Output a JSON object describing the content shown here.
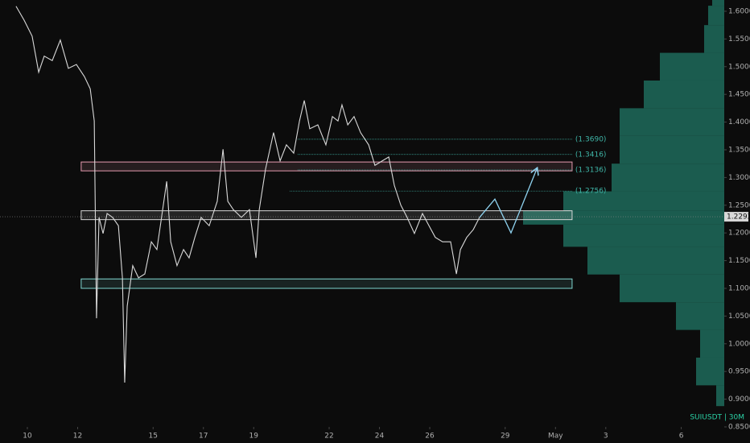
{
  "chart_data": {
    "type": "line",
    "symbol_label": "SUIUSDT | 30M",
    "color": "#d9d9d9",
    "x": [
      9.55,
      9.87,
      10.19,
      10.45,
      10.67,
      10.99,
      11.31,
      11.63,
      11.95,
      12.27,
      12.5,
      12.66,
      12.75,
      12.85,
      13.01,
      13.17,
      13.39,
      13.62,
      13.78,
      13.87,
      13.97,
      14.19,
      14.42,
      14.67,
      14.93,
      15.15,
      15.38,
      15.54,
      15.7,
      15.95,
      16.21,
      16.43,
      16.66,
      16.91,
      17.23,
      17.55,
      17.78,
      17.97,
      18.19,
      18.51,
      18.83,
      19.09,
      19.22,
      19.47,
      19.79,
      20.05,
      20.3,
      20.59,
      20.82,
      21.01,
      21.23,
      21.55,
      21.87,
      22.13,
      22.35,
      22.51,
      22.74,
      22.99,
      23.25,
      23.57,
      23.82,
      24.11,
      24.37,
      24.59,
      24.85,
      25.1,
      25.39,
      25.71,
      25.97,
      26.22,
      26.51,
      26.83,
      27.06,
      27.22,
      27.47,
      27.73,
      27.98
    ],
    "values": [
      1.609,
      1.584,
      1.555,
      1.49,
      1.519,
      1.511,
      1.548,
      1.497,
      1.504,
      1.482,
      1.46,
      1.402,
      1.046,
      1.228,
      1.199,
      1.235,
      1.228,
      1.213,
      1.119,
      0.93,
      1.068,
      1.141,
      1.119,
      1.126,
      1.184,
      1.17,
      1.242,
      1.293,
      1.184,
      1.141,
      1.17,
      1.155,
      1.192,
      1.228,
      1.213,
      1.257,
      1.351,
      1.257,
      1.242,
      1.228,
      1.242,
      1.155,
      1.242,
      1.315,
      1.381,
      1.33,
      1.359,
      1.344,
      1.402,
      1.439,
      1.388,
      1.395,
      1.359,
      1.41,
      1.402,
      1.431,
      1.395,
      1.41,
      1.381,
      1.359,
      1.322,
      1.33,
      1.337,
      1.286,
      1.25,
      1.228,
      1.199,
      1.235,
      1.213,
      1.192,
      1.184,
      1.184,
      1.126,
      1.17,
      1.192,
      1.206,
      1.228
    ],
    "xlim": [
      8.912,
      37.71
    ],
    "ylim": [
      0.85,
      1.6203
    ],
    "xticks": [
      10,
      12,
      15,
      17,
      19,
      22,
      24,
      26,
      29,
      {
        "value": 31,
        "label": "May"
      },
      {
        "value": 33,
        "label": "3"
      },
      {
        "value": 36,
        "label": "6"
      }
    ],
    "yticks": [
      {
        "value": 1.6,
        "label": "1.6000"
      },
      {
        "value": 1.55,
        "label": "1.5500"
      },
      {
        "value": 1.5,
        "label": "1.5000"
      },
      {
        "value": 1.45,
        "label": "1.4500"
      },
      {
        "value": 1.4,
        "label": "1.4000"
      },
      {
        "value": 1.35,
        "label": "1.3500"
      },
      {
        "value": 1.3,
        "label": "1.3000"
      },
      {
        "value": 1.25,
        "label": "1.2500"
      },
      {
        "value": 1.2,
        "label": "1.2000"
      },
      {
        "value": 1.15,
        "label": "1.1500"
      },
      {
        "value": 1.1,
        "label": "1.1000"
      },
      {
        "value": 1.05,
        "label": "1.0500"
      },
      {
        "value": 1.0,
        "label": "1.0000"
      },
      {
        "value": 0.95,
        "label": "0.9500"
      },
      {
        "value": 0.9,
        "label": "0.9000"
      },
      {
        "value": 0.85,
        "label": "0.8500"
      }
    ],
    "last_price": {
      "value": 1.2292,
      "label": "1.2292"
    },
    "zones": [
      {
        "x": [
          12.14,
          31.66
        ],
        "y": [
          1.312,
          1.328
        ],
        "color": "#e79bb0"
      },
      {
        "x": [
          12.14,
          31.66
        ],
        "y": [
          1.224,
          1.24
        ],
        "color": "#d8d8d8"
      },
      {
        "x": [
          12.14,
          31.66
        ],
        "y": [
          1.1,
          1.117
        ],
        "color": "#7fd6d0"
      }
    ],
    "levels": [
      {
        "value": 1.369,
        "label": "(1.3690)",
        "x": [
          20.75,
          31.66
        ]
      },
      {
        "value": 1.3416,
        "label": "(1.3416)",
        "x": [
          20.75,
          31.66
        ]
      },
      {
        "value": 1.3136,
        "label": "(1.3136)",
        "x": [
          20.75,
          31.66
        ]
      },
      {
        "value": 1.2756,
        "label": "(1.2756)",
        "x": [
          20.43,
          31.66
        ]
      }
    ],
    "level_color": "#3fb6a8",
    "projection": {
      "color": "#8fd3f0",
      "x": [
        27.98,
        28.59,
        29.23,
        30.26
      ],
      "values": [
        1.228,
        1.261,
        1.2,
        1.316
      ]
    },
    "volume_profile": {
      "color": "#1e6b5c",
      "xlim": [
        0,
        260
      ],
      "prices": [
        1.62,
        1.6,
        1.55,
        1.5,
        1.45,
        1.4,
        1.35,
        1.3,
        1.25,
        1.23,
        1.2,
        1.15,
        1.1,
        1.05,
        1.0,
        0.95,
        0.9
      ],
      "values": [
        15,
        20,
        25,
        80,
        100,
        130,
        130,
        140,
        200,
        250,
        200,
        170,
        130,
        60,
        30,
        35,
        10
      ]
    }
  }
}
